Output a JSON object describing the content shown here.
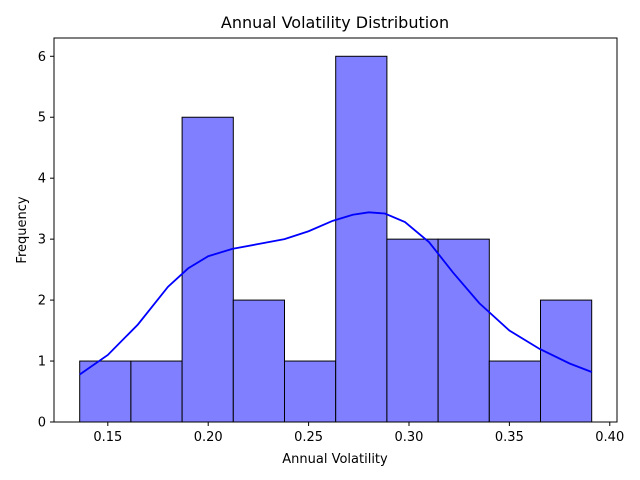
{
  "chart_data": {
    "type": "bar",
    "title": "Annual Volatility Distribution",
    "xlabel": "Annual Volatility",
    "ylabel": "Frequency",
    "xlim": [
      0.1232,
      0.4036
    ],
    "ylim": [
      0,
      6.3
    ],
    "x_ticks": [
      0.15,
      0.2,
      0.25,
      0.3,
      0.35,
      0.4
    ],
    "x_tick_labels": [
      "0.15",
      "0.20",
      "0.25",
      "0.30",
      "0.35",
      "0.40"
    ],
    "y_ticks": [
      0,
      1,
      2,
      3,
      4,
      5,
      6
    ],
    "y_tick_labels": [
      "0",
      "1",
      "2",
      "3",
      "4",
      "5",
      "6"
    ],
    "bins": [
      {
        "x0": 0.136,
        "x1": 0.1615,
        "count": 1
      },
      {
        "x0": 0.1615,
        "x1": 0.187,
        "count": 1
      },
      {
        "x0": 0.187,
        "x1": 0.2125,
        "count": 5
      },
      {
        "x0": 0.2125,
        "x1": 0.238,
        "count": 2
      },
      {
        "x0": 0.238,
        "x1": 0.2635,
        "count": 1
      },
      {
        "x0": 0.2635,
        "x1": 0.289,
        "count": 6
      },
      {
        "x0": 0.289,
        "x1": 0.3145,
        "count": 3
      },
      {
        "x0": 0.3145,
        "x1": 0.34,
        "count": 3
      },
      {
        "x0": 0.34,
        "x1": 0.3655,
        "count": 1
      },
      {
        "x0": 0.3655,
        "x1": 0.391,
        "count": 2
      }
    ],
    "kde": {
      "x": [
        0.136,
        0.15,
        0.165,
        0.18,
        0.19,
        0.2,
        0.212,
        0.225,
        0.238,
        0.25,
        0.262,
        0.272,
        0.28,
        0.288,
        0.298,
        0.31,
        0.322,
        0.335,
        0.35,
        0.365,
        0.38,
        0.391
      ],
      "y": [
        0.78,
        1.1,
        1.6,
        2.22,
        2.52,
        2.72,
        2.84,
        2.92,
        3.0,
        3.13,
        3.3,
        3.4,
        3.44,
        3.42,
        3.28,
        2.95,
        2.45,
        1.95,
        1.5,
        1.2,
        0.96,
        0.82
      ]
    },
    "bar_fill": "#7f7fff",
    "bar_edge": "#000000",
    "kde_color": "#0000ff",
    "grid": false,
    "legend": "none"
  }
}
